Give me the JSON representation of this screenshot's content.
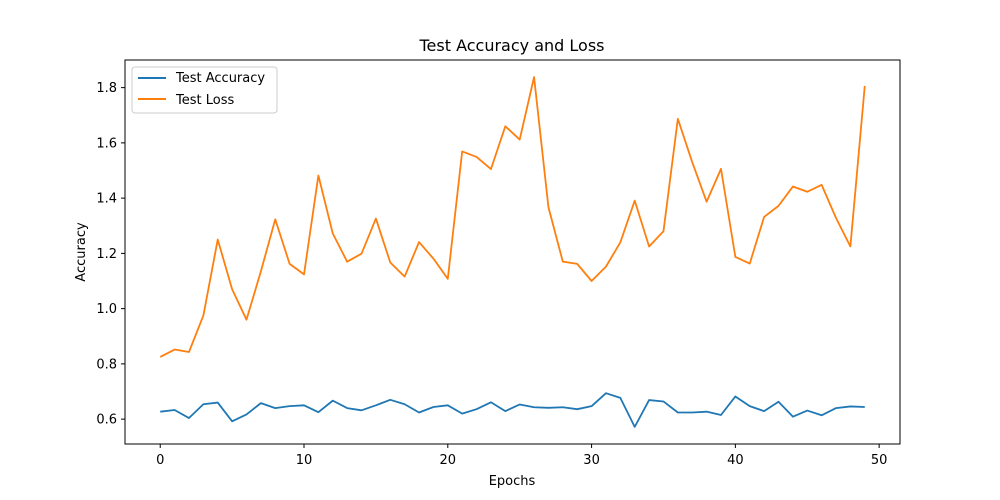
{
  "chart_data": {
    "type": "line",
    "title": "Test Accuracy and Loss",
    "xlabel": "Epochs",
    "ylabel": "Accuracy",
    "xlim": [
      -2.45,
      51.45
    ],
    "ylim": [
      0.51,
      1.9
    ],
    "x_ticks": [
      0,
      10,
      20,
      30,
      40,
      50
    ],
    "y_ticks": [
      0.6,
      0.8,
      1.0,
      1.2,
      1.4,
      1.6,
      1.8
    ],
    "grid": false,
    "legend_position": "top-left",
    "x": [
      0,
      1,
      2,
      3,
      4,
      5,
      6,
      7,
      8,
      9,
      10,
      11,
      12,
      13,
      14,
      15,
      16,
      17,
      18,
      19,
      20,
      21,
      22,
      23,
      24,
      25,
      26,
      27,
      28,
      29,
      30,
      31,
      32,
      33,
      34,
      35,
      36,
      37,
      38,
      39,
      40,
      41,
      42,
      43,
      44,
      45,
      46,
      47,
      48,
      49
    ],
    "series": [
      {
        "name": "Test Accuracy",
        "color": "#1f77b4",
        "values": [
          0.627,
          0.633,
          0.604,
          0.654,
          0.66,
          0.592,
          0.617,
          0.658,
          0.64,
          0.647,
          0.65,
          0.625,
          0.667,
          0.64,
          0.632,
          0.65,
          0.67,
          0.654,
          0.624,
          0.644,
          0.65,
          0.62,
          0.636,
          0.661,
          0.629,
          0.653,
          0.643,
          0.641,
          0.643,
          0.636,
          0.647,
          0.694,
          0.677,
          0.572,
          0.669,
          0.664,
          0.624,
          0.624,
          0.627,
          0.615,
          0.682,
          0.647,
          0.629,
          0.663,
          0.609,
          0.631,
          0.614,
          0.64,
          0.646,
          0.644
        ]
      },
      {
        "name": "Test Loss",
        "color": "#ff7f0e",
        "values": [
          0.825,
          0.852,
          0.843,
          0.975,
          1.25,
          1.07,
          0.96,
          1.135,
          1.323,
          1.162,
          1.124,
          1.482,
          1.272,
          1.17,
          1.199,
          1.326,
          1.167,
          1.116,
          1.241,
          1.181,
          1.108,
          1.569,
          1.549,
          1.505,
          1.66,
          1.612,
          1.838,
          1.367,
          1.17,
          1.162,
          1.1,
          1.152,
          1.24,
          1.391,
          1.225,
          1.28,
          1.687,
          1.53,
          1.387,
          1.506,
          1.187,
          1.163,
          1.332,
          1.372,
          1.442,
          1.423,
          1.448,
          1.328,
          1.225,
          1.806
        ]
      }
    ]
  }
}
